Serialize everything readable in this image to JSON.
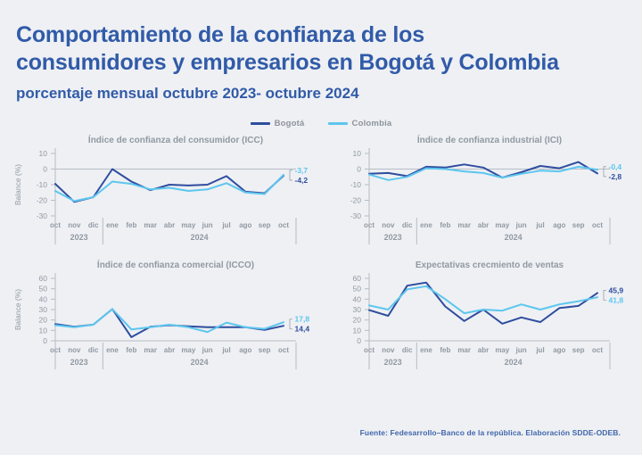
{
  "page": {
    "title_line1": "Comportamiento de la confianza de los",
    "title_line2": "consumidores y empresarios en Bogotá y Colombia",
    "subtitle": "porcentaje mensual octubre 2023- octubre 2024",
    "footer": "Fuente: Fedesarrollo–Banco de la república. Elaboración SDDE-ODEB."
  },
  "colors": {
    "background": "#eef0f4",
    "title_blue": "#315ba8",
    "bogota": "#2f4d9e",
    "colombia": "#5cc6ee",
    "axis_gray": "#b7bdc5",
    "text_gray": "#9199a1",
    "footer_blue": "#4166ab"
  },
  "legend": {
    "items": [
      {
        "label": "Bogotá",
        "color_key": "bogota"
      },
      {
        "label": "Colombia",
        "color_key": "colombia"
      }
    ]
  },
  "chart_data": [
    {
      "type": "line",
      "title": "Índice de confianza del consumidor (ICC)",
      "ylabel": "Balance (%)",
      "ylim": [
        -30,
        10
      ],
      "yticks": [
        10,
        0,
        -10,
        -20,
        -30
      ],
      "grid": false,
      "legend_position": "top-center-shared",
      "categories": [
        "oct",
        "nov",
        "dic",
        "ene",
        "feb",
        "mar",
        "abr",
        "may",
        "jun",
        "jul",
        "ago",
        "sep",
        "oct"
      ],
      "year_groups": [
        {
          "label": "2023",
          "span": 3
        },
        {
          "label": "2024",
          "span": 10
        }
      ],
      "series": [
        {
          "name": "Bogotá",
          "color_key": "bogota",
          "values": [
            -9.5,
            -21,
            -18,
            0,
            -8,
            -13.5,
            -10,
            -10.5,
            -10,
            -4.5,
            -14.5,
            -15.5,
            -4.2
          ],
          "end_label": "-4,2"
        },
        {
          "name": "Colombia",
          "color_key": "colombia",
          "values": [
            -14,
            -20.5,
            -18,
            -8,
            -9.5,
            -13,
            -12,
            -14,
            -13,
            -9,
            -15,
            -16,
            -3.7
          ],
          "end_label": "-3,7"
        }
      ]
    },
    {
      "type": "line",
      "title": "Índice de confianza industrial (ICI)",
      "ylabel": "",
      "ylim": [
        -30,
        10
      ],
      "yticks": [
        10,
        0,
        -10,
        -20,
        -30
      ],
      "grid": false,
      "categories": [
        "oct",
        "nov",
        "dic",
        "ene",
        "feb",
        "mar",
        "abr",
        "may",
        "jun",
        "jul",
        "ago",
        "sep",
        "oct"
      ],
      "year_groups": [
        {
          "label": "2023",
          "span": 3
        },
        {
          "label": "2024",
          "span": 10
        }
      ],
      "series": [
        {
          "name": "Bogotá",
          "color_key": "bogota",
          "values": [
            -3,
            -2.5,
            -4.5,
            1.5,
            1,
            3,
            1,
            -5.5,
            -2,
            2,
            0.5,
            4.5,
            -2.8
          ],
          "end_label": "-2,8"
        },
        {
          "name": "Colombia",
          "color_key": "colombia",
          "values": [
            -3.5,
            -7,
            -5,
            0.5,
            0,
            -1.5,
            -2.5,
            -5.5,
            -3,
            -1,
            -1.5,
            1.5,
            -0.4
          ],
          "end_label": "-0,4"
        }
      ]
    },
    {
      "type": "line",
      "title": "Índice de confianza comercial (ICCO)",
      "ylabel": "Balance (%)",
      "ylim": [
        0,
        60
      ],
      "yticks": [
        60,
        50,
        40,
        30,
        20,
        10,
        0
      ],
      "grid": false,
      "categories": [
        "oct",
        "nov",
        "dic",
        "ene",
        "feb",
        "mar",
        "abr",
        "may",
        "jun",
        "jul",
        "ago",
        "sep",
        "oct"
      ],
      "year_groups": [
        {
          "label": "2023",
          "span": 3
        },
        {
          "label": "2024",
          "span": 10
        }
      ],
      "series": [
        {
          "name": "Bogotá",
          "color_key": "bogota",
          "values": [
            16,
            13.5,
            15.5,
            30.5,
            3.5,
            13.5,
            15,
            14,
            13,
            13,
            13,
            10.5,
            14.4
          ],
          "end_label": "14,4"
        },
        {
          "name": "Colombia",
          "color_key": "colombia",
          "values": [
            15,
            13,
            15.5,
            30.5,
            11,
            13,
            15.5,
            13,
            8.5,
            17.5,
            13,
            11.5,
            17.8
          ],
          "end_label": "17,8"
        }
      ]
    },
    {
      "type": "line",
      "title": "Expectativas crecmiento de ventas",
      "ylabel": "",
      "ylim": [
        0,
        60
      ],
      "yticks": [
        60,
        50,
        40,
        30,
        20,
        10,
        0
      ],
      "grid": false,
      "categories": [
        "oct",
        "nov",
        "dic",
        "ene",
        "feb",
        "mar",
        "abr",
        "may",
        "jun",
        "jul",
        "ago",
        "sep",
        "oct"
      ],
      "year_groups": [
        {
          "label": "2023",
          "span": 3
        },
        {
          "label": "2024",
          "span": 10
        }
      ],
      "series": [
        {
          "name": "Bogotá",
          "color_key": "bogota",
          "values": [
            29.5,
            24,
            53,
            56,
            33,
            19,
            30,
            16.5,
            22.5,
            18,
            31.5,
            33.5,
            45.9
          ],
          "end_label": "45,9"
        },
        {
          "name": "Colombia",
          "color_key": "colombia",
          "values": [
            34,
            30,
            49.5,
            52.5,
            40,
            26.5,
            30,
            29,
            35,
            30,
            35,
            38,
            41.8
          ],
          "end_label": "41,8"
        }
      ]
    }
  ]
}
